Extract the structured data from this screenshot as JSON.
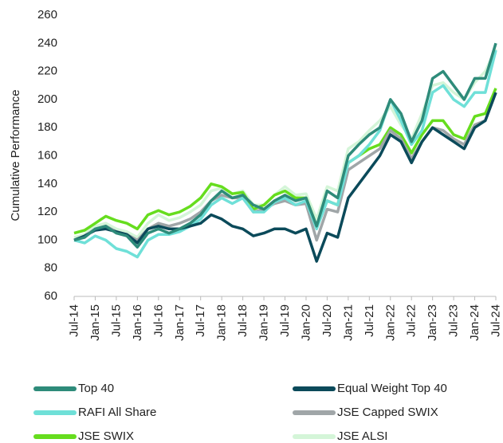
{
  "chart_data": {
    "type": "line",
    "y_label": "Cumulative Performance",
    "categories": [
      "Jul-14",
      null,
      "Jan-15",
      null,
      "Jul-15",
      null,
      "Jan-16",
      null,
      "Jul-16",
      null,
      "Jan-17",
      null,
      "Jul-17",
      null,
      "Jan-18",
      null,
      "Jul-18",
      null,
      "Jan-19",
      null,
      "Jul-19",
      null,
      "Jan-20",
      null,
      "Jul-20",
      null,
      "Jan-21",
      null,
      "Jul-21",
      null,
      "Jan-22",
      null,
      "Jul-22",
      null,
      "Jan-23",
      null,
      "Jul-23",
      null,
      "Jan-24",
      null,
      "Jul-24"
    ],
    "ylim": [
      60,
      260
    ],
    "yticks": [
      60,
      80,
      100,
      120,
      140,
      160,
      180,
      200,
      220,
      240,
      260
    ],
    "grid": false,
    "legend": "bottom",
    "series": [
      {
        "name": "Top 40",
        "color": "#2e8b7a",
        "values": [
          100,
          102,
          108,
          110,
          105,
          103,
          95,
          105,
          108,
          105,
          108,
          112,
          118,
          128,
          135,
          130,
          132,
          125,
          122,
          128,
          132,
          128,
          130,
          110,
          135,
          130,
          160,
          168,
          175,
          180,
          200,
          190,
          170,
          185,
          215,
          220,
          210,
          200,
          215,
          215,
          240
        ]
      },
      {
        "name": "Equal Weight Top 40",
        "color": "#0b4a5a",
        "values": [
          100,
          103,
          107,
          108,
          106,
          104,
          98,
          108,
          110,
          108,
          108,
          110,
          112,
          118,
          115,
          110,
          108,
          103,
          105,
          108,
          108,
          105,
          108,
          85,
          105,
          102,
          130,
          140,
          150,
          160,
          175,
          170,
          155,
          170,
          180,
          175,
          170,
          165,
          180,
          185,
          205
        ]
      },
      {
        "name": "RAFI All Share",
        "color": "#6fe0d8",
        "values": [
          100,
          98,
          103,
          100,
          94,
          92,
          88,
          100,
          104,
          104,
          106,
          110,
          115,
          125,
          130,
          126,
          130,
          120,
          120,
          127,
          130,
          125,
          128,
          108,
          128,
          125,
          155,
          160,
          168,
          178,
          200,
          185,
          168,
          178,
          205,
          210,
          200,
          195,
          205,
          205,
          235
        ]
      },
      {
        "name": "JSE Capped SWIX",
        "color": "#a0a6a8",
        "values": [
          100,
          103,
          108,
          110,
          106,
          104,
          100,
          108,
          112,
          110,
          112,
          115,
          120,
          128,
          132,
          130,
          130,
          120,
          122,
          126,
          128,
          125,
          126,
          100,
          122,
          120,
          150,
          155,
          160,
          165,
          178,
          172,
          158,
          170,
          180,
          178,
          172,
          168,
          182,
          185,
          205
        ]
      },
      {
        "name": "JSE SWIX",
        "color": "#66dd1e",
        "values": [
          105,
          107,
          112,
          117,
          114,
          112,
          108,
          118,
          121,
          118,
          120,
          124,
          130,
          140,
          138,
          133,
          134,
          122,
          125,
          132,
          135,
          130,
          130,
          110,
          128,
          125,
          155,
          160,
          165,
          168,
          180,
          175,
          162,
          175,
          185,
          185,
          175,
          172,
          188,
          190,
          208
        ]
      },
      {
        "name": "JSE ALSI",
        "color": "#d4f5d8",
        "values": [
          102,
          104,
          110,
          112,
          108,
          106,
          102,
          112,
          118,
          114,
          116,
          120,
          125,
          135,
          137,
          133,
          135,
          125,
          125,
          132,
          138,
          132,
          133,
          115,
          138,
          135,
          165,
          170,
          178,
          185,
          195,
          182,
          172,
          190,
          210,
          212,
          205,
          200,
          212,
          220,
          236
        ]
      }
    ]
  }
}
